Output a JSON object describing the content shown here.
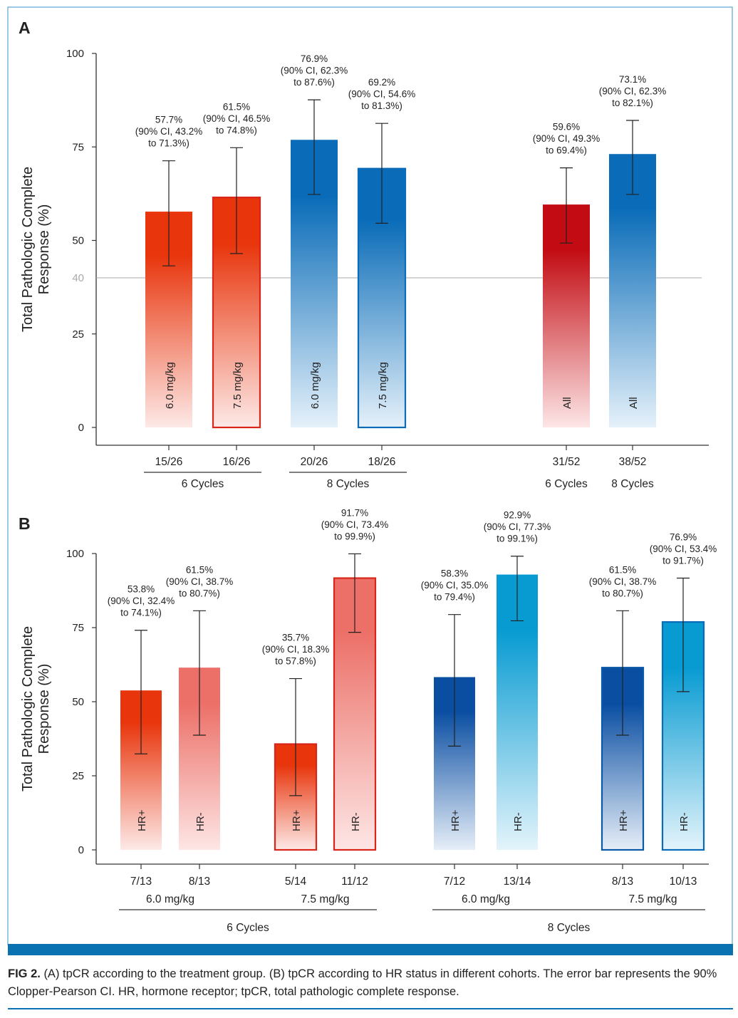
{
  "figure": {
    "caption_label": "FIG 2.",
    "caption_text": "(A) tpCR according to the treatment group. (B) tpCR according to HR status in different cohorts. The error bar represents the 90% Clopper-Pearson CI. HR, hormone receptor; tpCR, total pathologic complete response.",
    "frame_color": "#5aa7d6",
    "band_color": "#0a72b0"
  },
  "chart_data": [
    {
      "panel": "A",
      "type": "bar",
      "ylabel": [
        "Total Pathologic Complete",
        "Response (%)"
      ],
      "ylim": [
        0,
        100
      ],
      "yticks": [
        0,
        25,
        50,
        75,
        100
      ],
      "reference_line": 40,
      "grid": false,
      "error_bar": "90% CI",
      "bars": [
        {
          "category": "15/26",
          "inner_label": "6.0 mg/kg",
          "value": 57.7,
          "ci": [
            43.2,
            71.3
          ],
          "color": "red",
          "outlined": false
        },
        {
          "category": "16/26",
          "inner_label": "7.5 mg/kg",
          "value": 61.5,
          "ci": [
            46.5,
            74.8
          ],
          "color": "red",
          "outlined": true
        },
        {
          "category": "20/26",
          "inner_label": "6.0 mg/kg",
          "value": 76.9,
          "ci": [
            62.3,
            87.6
          ],
          "color": "blue",
          "outlined": false
        },
        {
          "category": "18/26",
          "inner_label": "7.5 mg/kg",
          "value": 69.2,
          "ci": [
            54.6,
            81.3
          ],
          "color": "blue",
          "outlined": true
        },
        {
          "category": "31/52",
          "inner_label": "All",
          "value": 59.6,
          "ci": [
            49.3,
            69.4
          ],
          "color": "darkred",
          "outlined": false
        },
        {
          "category": "38/52",
          "inner_label": "All",
          "value": 73.1,
          "ci": [
            62.3,
            82.1
          ],
          "color": "blue",
          "outlined": false
        }
      ],
      "groups": [
        {
          "label": "6 Cycles",
          "bars": [
            0,
            1
          ],
          "underline": true
        },
        {
          "label": "8 Cycles",
          "bars": [
            2,
            3
          ],
          "underline": true
        },
        {
          "label": "6 Cycles",
          "bars": [
            4
          ],
          "underline": false
        },
        {
          "label": "8 Cycles",
          "bars": [
            5
          ],
          "underline": false
        }
      ]
    },
    {
      "panel": "B",
      "type": "bar",
      "ylabel": [
        "Total Pathologic Complete",
        "Response (%)"
      ],
      "ylim": [
        0,
        100
      ],
      "yticks": [
        0,
        25,
        50,
        75,
        100
      ],
      "grid": false,
      "error_bar": "90% CI",
      "bars": [
        {
          "category": "7/13",
          "inner_label": "HR+",
          "value": 53.8,
          "ci": [
            32.4,
            74.1
          ],
          "color": "red",
          "outlined": false
        },
        {
          "category": "8/13",
          "inner_label": "HR-",
          "value": 61.5,
          "ci": [
            38.7,
            80.7
          ],
          "color": "lightred",
          "outlined": false
        },
        {
          "category": "5/14",
          "inner_label": "HR+",
          "value": 35.7,
          "ci": [
            18.3,
            57.8
          ],
          "color": "red",
          "outlined": true
        },
        {
          "category": "11/12",
          "inner_label": "HR-",
          "value": 91.7,
          "ci": [
            73.4,
            99.9
          ],
          "color": "lightred",
          "outlined": true
        },
        {
          "category": "7/12",
          "inner_label": "HR+",
          "value": 58.3,
          "ci": [
            35.0,
            79.4
          ],
          "color": "darkblue",
          "outlined": false
        },
        {
          "category": "13/14",
          "inner_label": "HR-",
          "value": 92.9,
          "ci": [
            77.3,
            99.1
          ],
          "color": "cyan",
          "outlined": false
        },
        {
          "category": "8/13",
          "inner_label": "HR+",
          "value": 61.5,
          "ci": [
            38.7,
            80.7
          ],
          "color": "darkblue",
          "outlined": true
        },
        {
          "category": "10/13",
          "inner_label": "HR-",
          "value": 76.9,
          "ci": [
            53.4,
            91.7
          ],
          "color": "cyan",
          "outlined": true
        }
      ],
      "dose_groups": [
        {
          "label": "6.0 mg/kg",
          "bars": [
            0,
            1
          ]
        },
        {
          "label": "7.5 mg/kg",
          "bars": [
            2,
            3
          ]
        },
        {
          "label": "6.0 mg/kg",
          "bars": [
            4,
            5
          ]
        },
        {
          "label": "7.5 mg/kg",
          "bars": [
            6,
            7
          ]
        }
      ],
      "groups": [
        {
          "label": "6 Cycles",
          "bars": [
            0,
            1,
            2,
            3
          ],
          "underline": true
        },
        {
          "label": "8 Cycles",
          "bars": [
            4,
            5,
            6,
            7
          ],
          "underline": true
        }
      ]
    }
  ],
  "palette": {
    "red": [
      "#e8350c",
      "#fde9e7",
      "#d9251a"
    ],
    "lightred": [
      "#ec7068",
      "#fde6e5",
      "#d9251a"
    ],
    "darkred": [
      "#c20b12",
      "#fde6e7",
      "#c20b12"
    ],
    "blue": [
      "#0a6cb8",
      "#e5f1fa",
      "#0a6cb8"
    ],
    "darkblue": [
      "#0a4ea2",
      "#e6eef8",
      "#0a5aa8"
    ],
    "cyan": [
      "#079bd2",
      "#e4f4fb",
      "#0a6cb8"
    ]
  }
}
